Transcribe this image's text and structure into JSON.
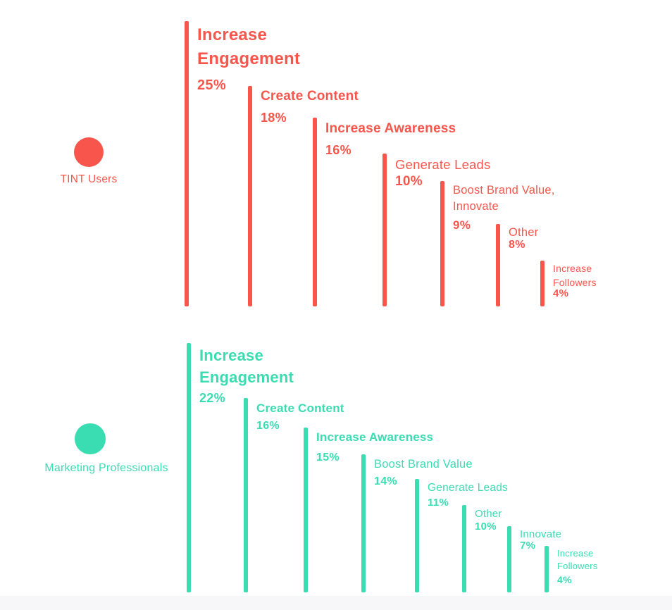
{
  "chart_data": {
    "type": "bar",
    "orientation": "vertical",
    "unit": "%",
    "legend_position": "left",
    "grid": false,
    "series": [
      {
        "name": "TINT Users",
        "color": "#f8564d",
        "points": [
          {
            "label": "Increase Engagement",
            "display": "Increase\nEngagement",
            "value": 25,
            "pct": "25%"
          },
          {
            "label": "Create Content",
            "display": "Create Content",
            "value": 18,
            "pct": "18%"
          },
          {
            "label": "Increase Awareness",
            "display": "Increase Awareness",
            "value": 16,
            "pct": "16%"
          },
          {
            "label": "Generate Leads",
            "display": "Generate Leads",
            "value": 10,
            "pct": "10%"
          },
          {
            "label": "Boost Brand Value, Innovate",
            "display": "Boost Brand Value,\nInnovate",
            "value": 9,
            "pct": "9%"
          },
          {
            "label": "Other",
            "display": "Other",
            "value": 8,
            "pct": "8%"
          },
          {
            "label": "Increase Followers",
            "display": "Increase\nFollowers",
            "value": 4,
            "pct": "4%"
          }
        ]
      },
      {
        "name": "Marketing Professionals",
        "color": "#3adcb2",
        "points": [
          {
            "label": "Increase Engagement",
            "display": "Increase\nEngagement",
            "value": 22,
            "pct": "22%"
          },
          {
            "label": "Create Content",
            "display": "Create Content",
            "value": 16,
            "pct": "16%"
          },
          {
            "label": "Increase Awareness",
            "display": "Increase Awareness",
            "value": 15,
            "pct": "15%"
          },
          {
            "label": "Boost Brand Value",
            "display": "Boost Brand Value",
            "value": 14,
            "pct": "14%"
          },
          {
            "label": "Generate Leads",
            "display": "Generate Leads",
            "value": 11,
            "pct": "11%"
          },
          {
            "label": "Other",
            "display": "Other",
            "value": 10,
            "pct": "10%"
          },
          {
            "label": "Innovate",
            "display": "Innovate",
            "value": 7,
            "pct": "7%"
          },
          {
            "label": "Increase Followers",
            "display": "Increase\nFollowers",
            "value": 4,
            "pct": "4%"
          }
        ]
      }
    ]
  },
  "colors": {
    "background": "#ffffff",
    "footer_strip": "#f7f7f9",
    "tint_users": "#f8564d",
    "marketing_professionals": "#3adcb2"
  }
}
